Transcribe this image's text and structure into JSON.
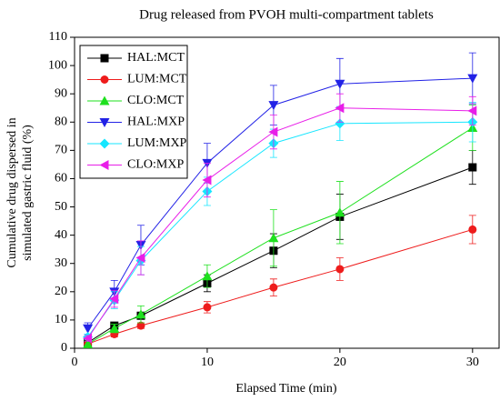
{
  "chart_data": {
    "type": "line",
    "title": "Drug released from PVOH multi-compartment tablets",
    "x_label": "Elapsed Time (min)",
    "y_label": [
      "Cumulative drug dispersed in",
      "simulated gastric fluid (%)"
    ],
    "x": [
      1,
      3,
      5,
      10,
      15,
      20,
      30
    ],
    "xlim": [
      0,
      32
    ],
    "xticks": [
      0,
      10,
      20,
      30
    ],
    "ylim": [
      0,
      110
    ],
    "yticks": [
      0,
      10,
      20,
      30,
      40,
      50,
      60,
      70,
      80,
      90,
      100,
      110
    ],
    "legend": "upper left",
    "series": [
      {
        "name": "HAL:MCT",
        "color": "#000000",
        "marker": "square",
        "values": [
          2,
          8,
          11.5,
          23,
          34.5,
          46.5,
          64
        ],
        "errors": [
          1,
          1,
          1,
          3,
          6,
          8,
          6
        ]
      },
      {
        "name": "LUM:MCT",
        "color": "#ee1c1c",
        "marker": "circle",
        "values": [
          1.5,
          5,
          8,
          14.5,
          21.5,
          28,
          42
        ],
        "errors": [
          0.5,
          1,
          1,
          2,
          3,
          4,
          5
        ]
      },
      {
        "name": "CLO:MCT",
        "color": "#1ee01e",
        "marker": "triangle-up",
        "values": [
          1.5,
          7,
          12,
          25.5,
          39,
          48,
          78
        ],
        "errors": [
          1,
          1.5,
          3,
          4,
          10,
          11,
          8
        ]
      },
      {
        "name": "HAL:MXP",
        "color": "#2222e6",
        "marker": "triangle-down",
        "values": [
          7,
          20,
          36.5,
          65.5,
          86,
          93.5,
          95.5
        ],
        "errors": [
          2,
          4,
          7,
          7,
          7,
          9,
          9
        ]
      },
      {
        "name": "LUM:MXP",
        "color": "#16e6ff",
        "marker": "diamond",
        "values": [
          4,
          17,
          31,
          55.5,
          72.5,
          79.5,
          80
        ],
        "errors": [
          1,
          3,
          5,
          5,
          5,
          6,
          7
        ]
      },
      {
        "name": "CLO:MXP",
        "color": "#e81ee8",
        "marker": "triangle-left",
        "values": [
          3.5,
          17.5,
          32,
          59.5,
          76.5,
          85,
          84
        ],
        "errors": [
          1,
          3,
          6,
          6,
          6,
          5,
          5
        ]
      }
    ]
  }
}
